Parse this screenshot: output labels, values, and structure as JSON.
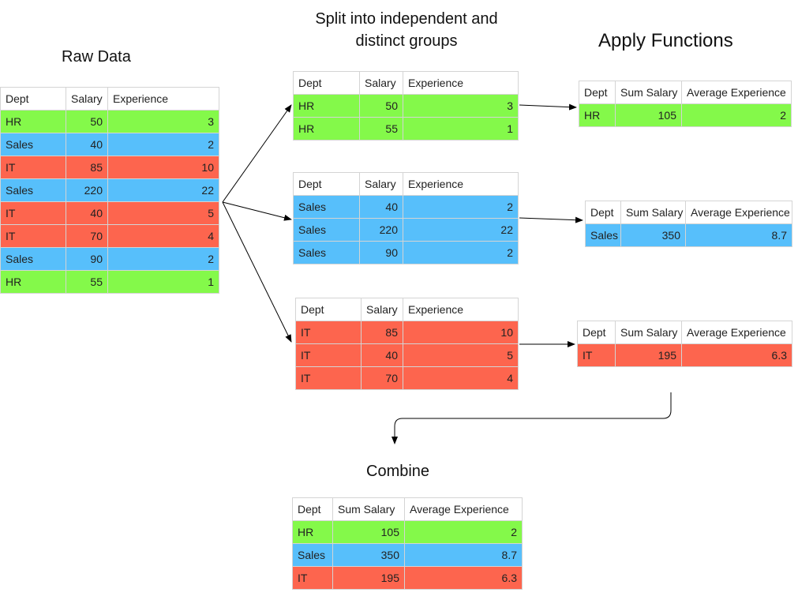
{
  "titles": {
    "raw": "Raw Data",
    "split": "Split into independent and distinct groups",
    "apply": "Apply Functions",
    "combine": "Combine"
  },
  "colors": {
    "HR": "#84F94A",
    "Sales": "#57BFFB",
    "IT": "#FD654E"
  },
  "raw": {
    "headers": [
      "Dept",
      "Salary",
      "Experience"
    ],
    "rows": [
      [
        "HR",
        "50",
        "3"
      ],
      [
        "Sales",
        "40",
        "2"
      ],
      [
        "IT",
        "85",
        "10"
      ],
      [
        "Sales",
        "220",
        "22"
      ],
      [
        "IT",
        "40",
        "5"
      ],
      [
        "IT",
        "70",
        "4"
      ],
      [
        "Sales",
        "90",
        "2"
      ],
      [
        "HR",
        "55",
        "1"
      ]
    ]
  },
  "split_hr": {
    "headers": [
      "Dept",
      "Salary",
      "Experience"
    ],
    "rows": [
      [
        "HR",
        "50",
        "3"
      ],
      [
        "HR",
        "55",
        "1"
      ]
    ]
  },
  "split_sales": {
    "headers": [
      "Dept",
      "Salary",
      "Experience"
    ],
    "rows": [
      [
        "Sales",
        "40",
        "2"
      ],
      [
        "Sales",
        "220",
        "22"
      ],
      [
        "Sales",
        "90",
        "2"
      ]
    ]
  },
  "split_it": {
    "headers": [
      "Dept",
      "Salary",
      "Experience"
    ],
    "rows": [
      [
        "IT",
        "85",
        "10"
      ],
      [
        "IT",
        "40",
        "5"
      ],
      [
        "IT",
        "70",
        "4"
      ]
    ]
  },
  "apply_hr": {
    "headers": [
      "Dept",
      "Sum Salary",
      "Average Experience"
    ],
    "rows": [
      [
        "HR",
        "105",
        "2"
      ]
    ]
  },
  "apply_sales": {
    "headers": [
      "Dept",
      "Sum Salary",
      "Average Experience"
    ],
    "rows": [
      [
        "Sales",
        "350",
        "8.7"
      ]
    ]
  },
  "apply_it": {
    "headers": [
      "Dept",
      "Sum Salary",
      "Average Experience"
    ],
    "rows": [
      [
        "IT",
        "195",
        "6.3"
      ]
    ]
  },
  "combined": {
    "headers": [
      "Dept",
      "Sum Salary",
      "Average Experience"
    ],
    "rows": [
      [
        "HR",
        "105",
        "2"
      ],
      [
        "Sales",
        "350",
        "8.7"
      ],
      [
        "IT",
        "195",
        "6.3"
      ]
    ]
  }
}
